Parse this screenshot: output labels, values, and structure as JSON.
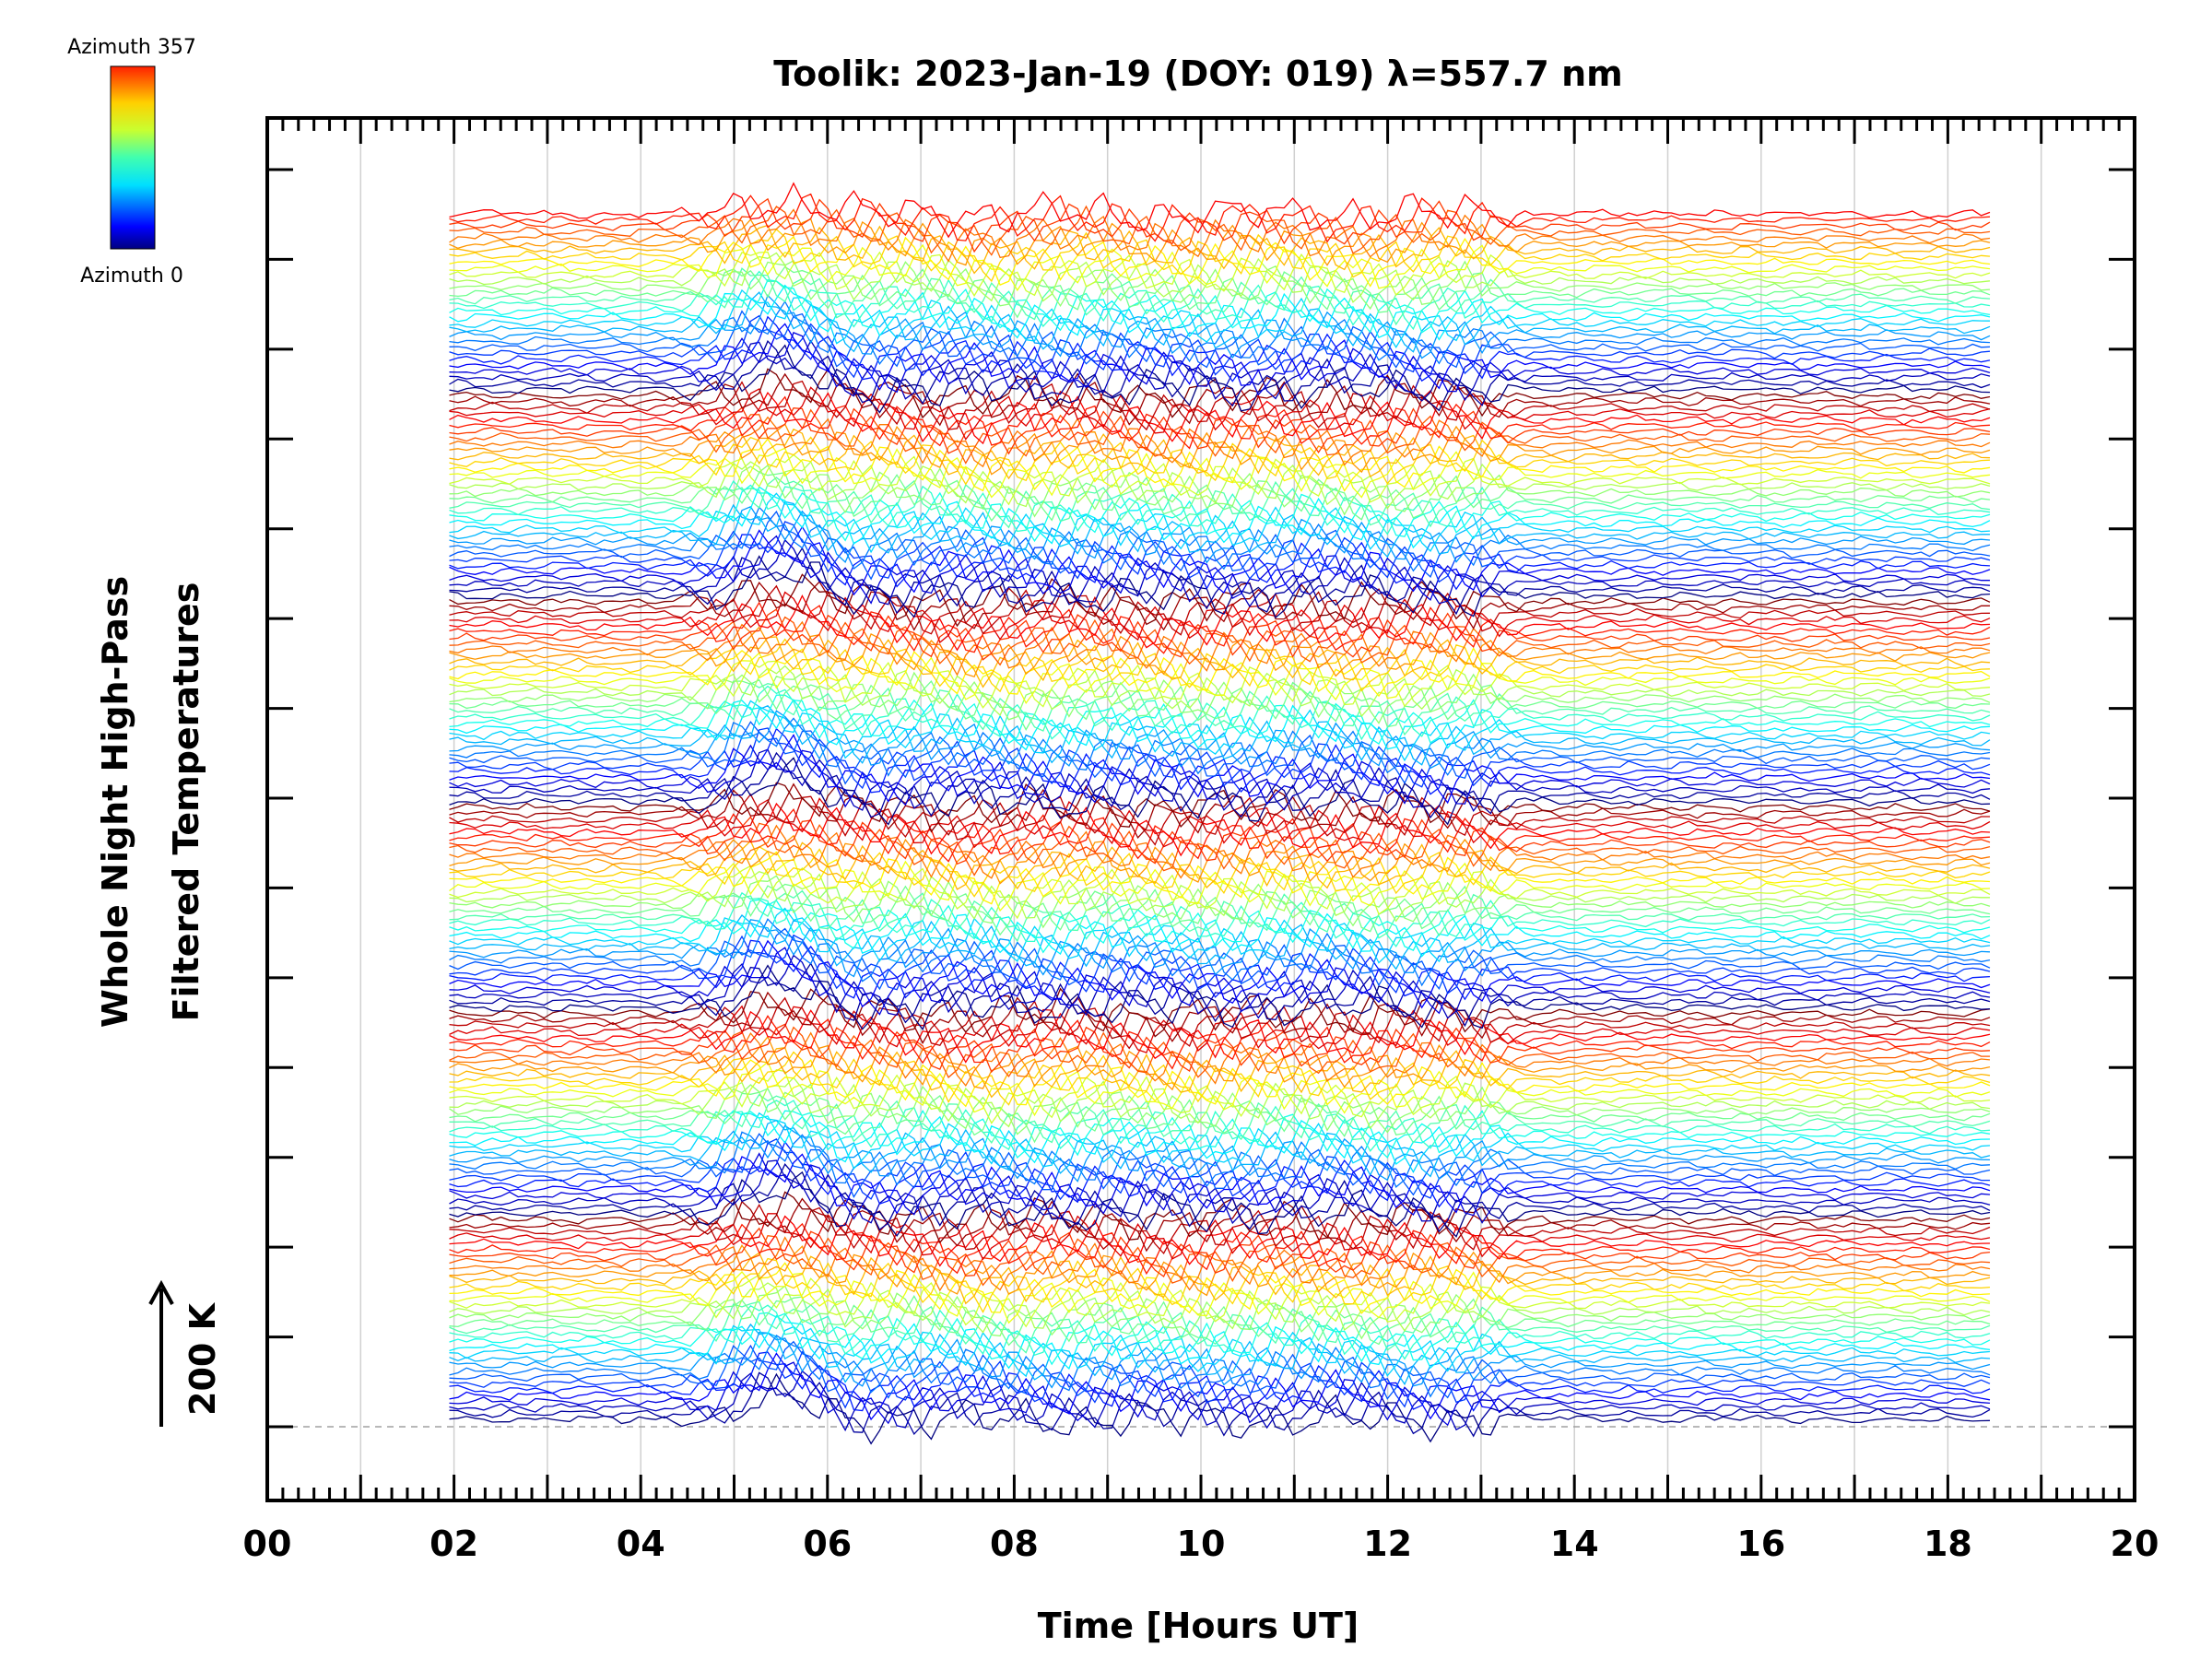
{
  "chart_data": {
    "type": "line",
    "title": "Toolik: 2023-Jan-19 (DOY: 019) λ=557.7 nm",
    "xlabel": "Time [Hours UT]",
    "ylabel_line1": "Whole Night High-Pass",
    "ylabel_line2": "Filtered Temperatures",
    "xlim": [
      0,
      20
    ],
    "x_ticks": [
      "00",
      "02",
      "04",
      "06",
      "08",
      "10",
      "12",
      "14",
      "16",
      "18",
      "20"
    ],
    "x_grid": "hourly vertical lines",
    "y_ticks_labeled": false,
    "scale_bar_label": "200 K",
    "colorbar": {
      "top_label": "Azimuth 357",
      "bottom_label": "Azimuth 0",
      "colormap": "jet"
    },
    "series_description": "Stacked high-pass filtered temperature traces, one per azimuth (0 to 357), offset vertically; about 200 traces spanning roughly 02:00 to 18:30 UT. Strong wave activity between about 05:00 and 13:00 UT.",
    "series_time_range": [
      1.95,
      18.45
    ],
    "active_interval": [
      5.0,
      13.0
    ],
    "baseline_dashed": true
  },
  "colors": {
    "axis": "#000000",
    "grid": "#d0d0d0",
    "baseline": "#a0a0a0"
  }
}
